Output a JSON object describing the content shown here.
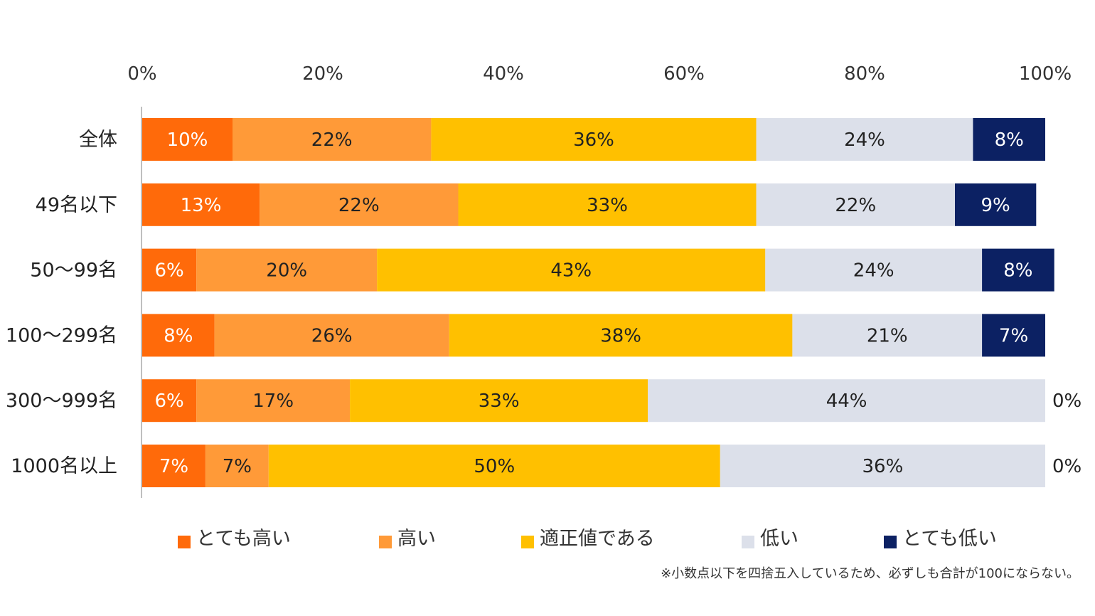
{
  "chart_data": {
    "type": "bar",
    "orientation": "horizontal",
    "stacked": true,
    "categories": [
      "全体",
      "49名以下",
      "50～99名",
      "100～299名",
      "300～999名",
      "1000名以上"
    ],
    "series": [
      {
        "name": "とても高い",
        "color": "#FF6A0A",
        "label_color": "#ffffff",
        "values": [
          10,
          13,
          6,
          8,
          6,
          7
        ],
        "labels": [
          "10%",
          "13%",
          "6%",
          "8%",
          "6%",
          "7%"
        ]
      },
      {
        "name": "高い",
        "color": "#FF9A38",
        "label_color": "#222222",
        "values": [
          22,
          22,
          20,
          26,
          17,
          7
        ],
        "labels": [
          "22%",
          "22%",
          "20%",
          "26%",
          "17%",
          "7%"
        ]
      },
      {
        "name": "適正値である",
        "color": "#FFC000",
        "label_color": "#222222",
        "values": [
          36,
          33,
          43,
          38,
          33,
          50
        ],
        "labels": [
          "36%",
          "33%",
          "43%",
          "38%",
          "33%",
          "50%"
        ]
      },
      {
        "name": "低い",
        "color": "#DCE0EA",
        "label_color": "#222222",
        "values": [
          24,
          22,
          24,
          21,
          44,
          36
        ],
        "labels": [
          "24%",
          "22%",
          "24%",
          "21%",
          "44%",
          "36%"
        ]
      },
      {
        "name": "とても低い",
        "color": "#0C2163",
        "label_color": "#ffffff",
        "values": [
          8,
          9,
          8,
          7,
          0,
          0
        ],
        "labels": [
          "8%",
          "9%",
          "8%",
          "7%",
          "0%",
          "0%"
        ]
      }
    ],
    "xlim": [
      0,
      100
    ],
    "xticks": [
      "0%",
      "20%",
      "40%",
      "60%",
      "80%",
      "100%"
    ],
    "axis_position": "top",
    "legend_position": "bottom",
    "grid": false
  },
  "footnote": "※小数点以下を四捨五入しているため、必ずしも合計が100にならない。"
}
